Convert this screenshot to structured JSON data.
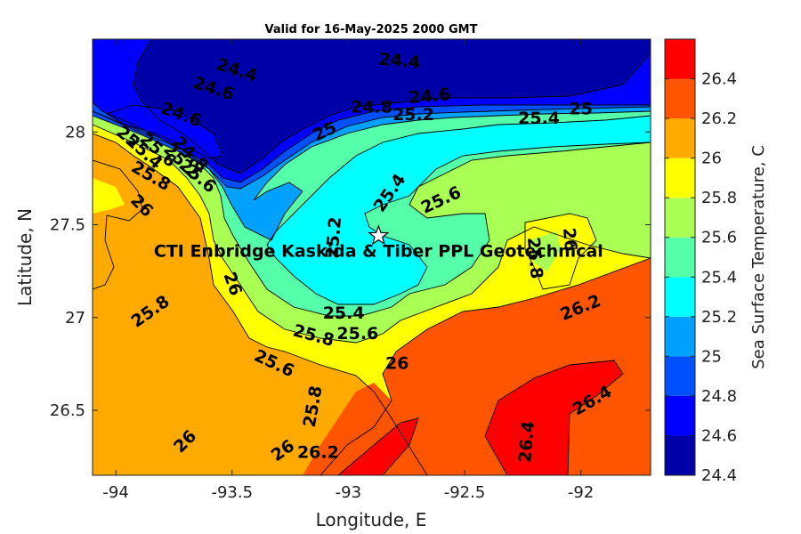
{
  "chart_data": {
    "type": "heatmap",
    "title": "Valid for 16-May-2025 2000 GMT",
    "xlabel": "Longitude, E",
    "ylabel": "Latitude, N",
    "colorbar_label": "Sea Surface Temperature, C",
    "xlim": [
      -94.1,
      -91.7
    ],
    "ylim": [
      26.15,
      28.5
    ],
    "x_ticks": [
      "-94",
      "-93.5",
      "-93",
      "-92.5",
      "-92"
    ],
    "x_tick_values": [
      -94,
      -93.5,
      -93,
      -92.5,
      -92
    ],
    "y_ticks": [
      "26.5",
      "27",
      "27.5",
      "28"
    ],
    "y_tick_values": [
      26.5,
      27,
      27.5,
      28
    ],
    "colorbar_range": [
      24.4,
      26.6
    ],
    "colorbar_ticks": [
      "24.4",
      "24.6",
      "24.8",
      "25",
      "25.2",
      "25.4",
      "25.6",
      "25.8",
      "26",
      "26.2",
      "26.4"
    ],
    "colorbar_tick_values": [
      24.4,
      24.6,
      24.8,
      25.0,
      25.2,
      25.4,
      25.6,
      25.8,
      26.0,
      26.2,
      26.4
    ],
    "levels": [
      24.4,
      24.6,
      24.8,
      25.0,
      25.2,
      25.4,
      25.6,
      25.8,
      26.0,
      26.2,
      26.4,
      26.6
    ],
    "level_colors": [
      "#0000a8",
      "#0000ff",
      "#0050ff",
      "#00a0ff",
      "#00ffff",
      "#55ffaa",
      "#aaff55",
      "#ffff00",
      "#ffaa00",
      "#ff5500",
      "#ff0000"
    ],
    "contour_labels": [
      {
        "text": "24.4",
        "lon": -93.48,
        "lat": 28.33,
        "rot": 18
      },
      {
        "text": "24.4",
        "lon": -92.78,
        "lat": 28.38,
        "rot": 5
      },
      {
        "text": "24.6",
        "lon": -93.58,
        "lat": 28.23,
        "rot": 18
      },
      {
        "text": "24.6",
        "lon": -92.65,
        "lat": 28.19,
        "rot": -5
      },
      {
        "text": "24.6",
        "lon": -93.72,
        "lat": 28.09,
        "rot": 20
      },
      {
        "text": "24.8",
        "lon": -92.9,
        "lat": 28.13,
        "rot": 0
      },
      {
        "text": "25.2",
        "lon": -92.72,
        "lat": 28.09,
        "rot": 0
      },
      {
        "text": "25.4",
        "lon": -92.18,
        "lat": 28.07,
        "rot": 0
      },
      {
        "text": "25",
        "lon": -92.0,
        "lat": 28.12,
        "rot": 0
      },
      {
        "text": "25",
        "lon": -93.1,
        "lat": 28.0,
        "rot": -25
      },
      {
        "text": "25",
        "lon": -93.95,
        "lat": 27.97,
        "rot": 40
      },
      {
        "text": "25.4",
        "lon": -93.88,
        "lat": 27.89,
        "rot": 42
      },
      {
        "text": "25.6",
        "lon": -93.82,
        "lat": 27.9,
        "rot": 42
      },
      {
        "text": "24.8",
        "lon": -93.68,
        "lat": 27.88,
        "rot": 45
      },
      {
        "text": "25.2",
        "lon": -93.72,
        "lat": 27.84,
        "rot": 45
      },
      {
        "text": "25.8",
        "lon": -93.85,
        "lat": 27.76,
        "rot": 30
      },
      {
        "text": "25.6",
        "lon": -93.65,
        "lat": 27.76,
        "rot": 40
      },
      {
        "text": "26",
        "lon": -93.89,
        "lat": 27.6,
        "rot": 45
      },
      {
        "text": "25.4",
        "lon": -92.82,
        "lat": 27.67,
        "rot": -55
      },
      {
        "text": "25.6",
        "lon": -92.6,
        "lat": 27.63,
        "rot": -25
      },
      {
        "text": "25.2",
        "lon": -93.06,
        "lat": 27.43,
        "rot": -85
      },
      {
        "text": "25.8",
        "lon": -92.2,
        "lat": 27.32,
        "rot": 85
      },
      {
        "text": "26",
        "lon": -92.05,
        "lat": 27.42,
        "rot": 85
      },
      {
        "text": "26",
        "lon": -93.5,
        "lat": 27.18,
        "rot": 70
      },
      {
        "text": "25.8",
        "lon": -93.85,
        "lat": 27.03,
        "rot": -35
      },
      {
        "text": "25.4",
        "lon": -93.02,
        "lat": 27.02,
        "rot": 0
      },
      {
        "text": "25.8",
        "lon": -93.15,
        "lat": 26.9,
        "rot": 15
      },
      {
        "text": "25.6",
        "lon": -92.96,
        "lat": 26.91,
        "rot": 0
      },
      {
        "text": "26.2",
        "lon": -92.0,
        "lat": 27.05,
        "rot": -22
      },
      {
        "text": "25.6",
        "lon": -93.32,
        "lat": 26.75,
        "rot": 25
      },
      {
        "text": "26",
        "lon": -92.79,
        "lat": 26.75,
        "rot": 0
      },
      {
        "text": "25.8",
        "lon": -93.15,
        "lat": 26.52,
        "rot": -80
      },
      {
        "text": "26.4",
        "lon": -91.95,
        "lat": 26.55,
        "rot": -30
      },
      {
        "text": "26.4",
        "lon": -92.23,
        "lat": 26.33,
        "rot": -85
      },
      {
        "text": "26",
        "lon": -93.7,
        "lat": 26.33,
        "rot": -45
      },
      {
        "text": "26",
        "lon": -93.28,
        "lat": 26.28,
        "rot": -35
      },
      {
        "text": "26.2",
        "lon": -93.13,
        "lat": 26.27,
        "rot": 0
      }
    ],
    "annotation": {
      "text": "CTI Enbridge  Kaskida & Tiber PPL Geotechnical",
      "lon": -92.87,
      "lat": 27.36
    },
    "site_marker": {
      "symbol": "star",
      "lon": -92.87,
      "lat": 27.44
    }
  }
}
